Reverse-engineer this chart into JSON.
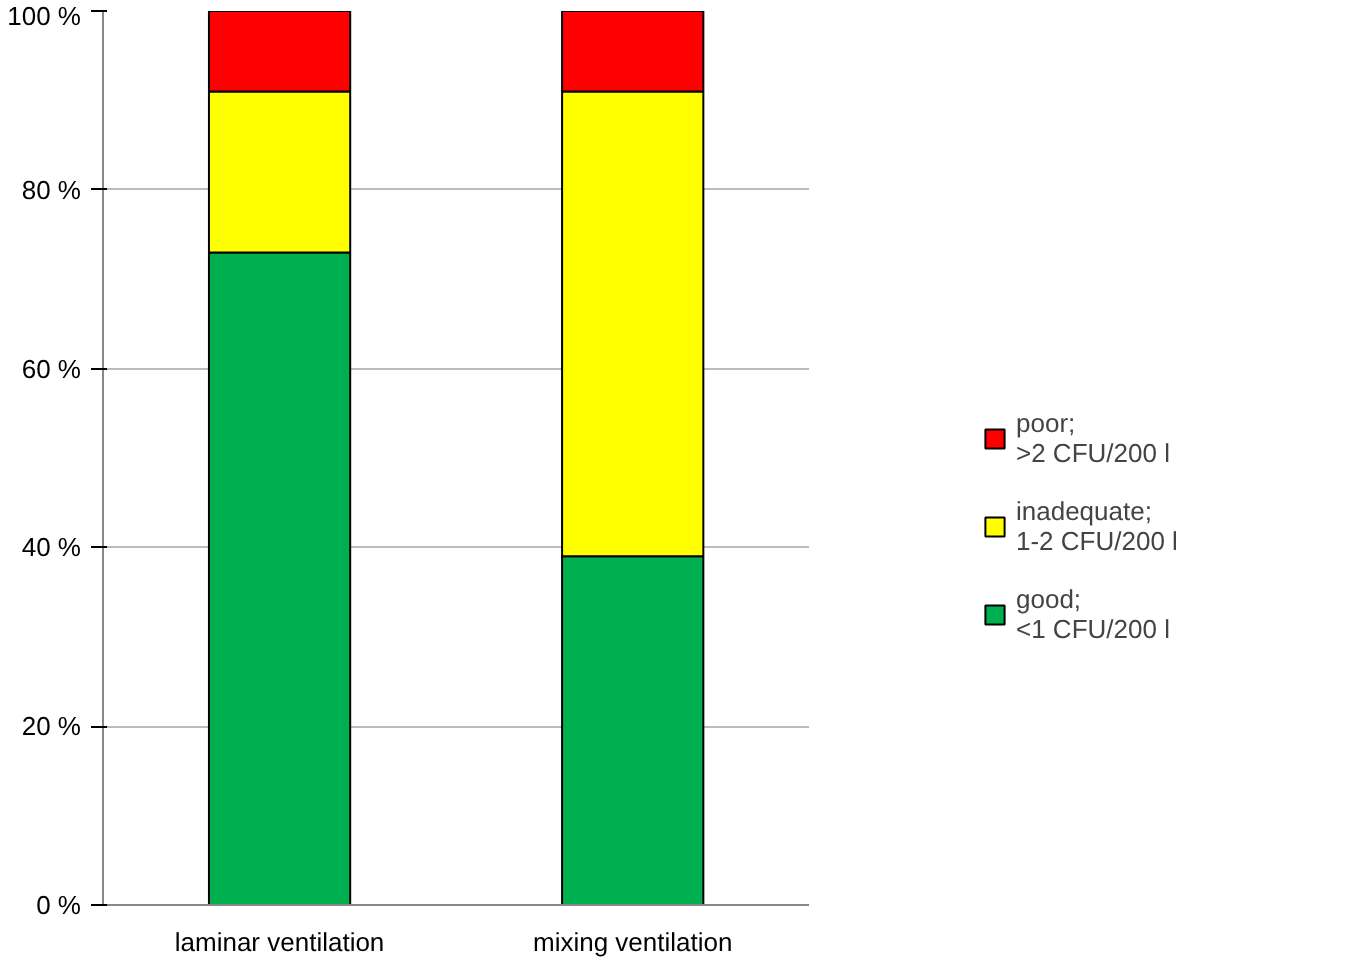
{
  "chart_data": {
    "type": "bar",
    "stacked": true,
    "categories": [
      "laminar ventilation",
      "mixing ventilation"
    ],
    "series": [
      {
        "name": "good;\n<1 CFU/200 l",
        "color": "#00b050",
        "values": [
          73,
          39
        ]
      },
      {
        "name": "inadequate;\n1-2 CFU/200 l",
        "color": "#ffff00",
        "values": [
          18,
          52
        ]
      },
      {
        "name": "poor;\n>2 CFU/200 l",
        "color": "#ff0000",
        "values": [
          9,
          9
        ]
      }
    ],
    "ylim": [
      0,
      100
    ],
    "yticks": [
      {
        "value": 0,
        "label": "0 %"
      },
      {
        "value": 20,
        "label": "20 %"
      },
      {
        "value": 40,
        "label": "40 %"
      },
      {
        "value": 60,
        "label": "60 %"
      },
      {
        "value": 80,
        "label": "80 %"
      },
      {
        "value": 100,
        "label": "100 %"
      }
    ],
    "grid": "y",
    "legend": "right"
  }
}
